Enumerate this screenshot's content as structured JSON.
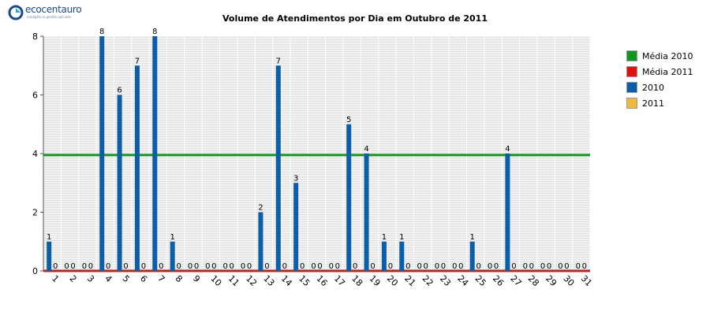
{
  "logo": {
    "name": "ecocentauro",
    "tagline": "inteligência gestão aplicada"
  },
  "chart_data": {
    "type": "bar",
    "title": "Volume de Atendimentos por Dia em Outubro de 2011",
    "xlabel": "",
    "ylabel": "",
    "ylim": [
      0,
      8
    ],
    "yticks": [
      0,
      2,
      4,
      6,
      8
    ],
    "grid": true,
    "legend_position": "right",
    "categories": [
      "1",
      "2",
      "3",
      "4",
      "5",
      "6",
      "7",
      "8",
      "9",
      "10",
      "11",
      "12",
      "13",
      "14",
      "15",
      "16",
      "17",
      "18",
      "19",
      "20",
      "21",
      "22",
      "23",
      "24",
      "25",
      "26",
      "27",
      "28",
      "29",
      "30",
      "31"
    ],
    "series": [
      {
        "name": "2010",
        "color": "#0a5fa8",
        "values": [
          1,
          0,
          0,
          8,
          6,
          7,
          8,
          1,
          0,
          0,
          0,
          0,
          2,
          7,
          3,
          0,
          0,
          5,
          4,
          1,
          1,
          0,
          0,
          0,
          1,
          0,
          4,
          0,
          0,
          0,
          0
        ]
      },
      {
        "name": "2011",
        "color": "#f0b840",
        "values": [
          0,
          0,
          0,
          0,
          0,
          0,
          0,
          0,
          0,
          0,
          0,
          0,
          0,
          0,
          0,
          0,
          0,
          0,
          0,
          0,
          0,
          0,
          0,
          0,
          0,
          0,
          0,
          0,
          0,
          0,
          0
        ]
      }
    ],
    "reference_lines": [
      {
        "name": "Média 2010",
        "color": "#11961f",
        "value": 3.95
      },
      {
        "name": "Média 2011",
        "color": "#e01010",
        "value": 0
      }
    ],
    "legend": [
      {
        "name": "Média 2010",
        "color": "#11961f"
      },
      {
        "name": "Média 2011",
        "color": "#e01010"
      },
      {
        "name": "2010",
        "color": "#0a5fa8"
      },
      {
        "name": "2011",
        "color": "#f0b840"
      }
    ]
  }
}
